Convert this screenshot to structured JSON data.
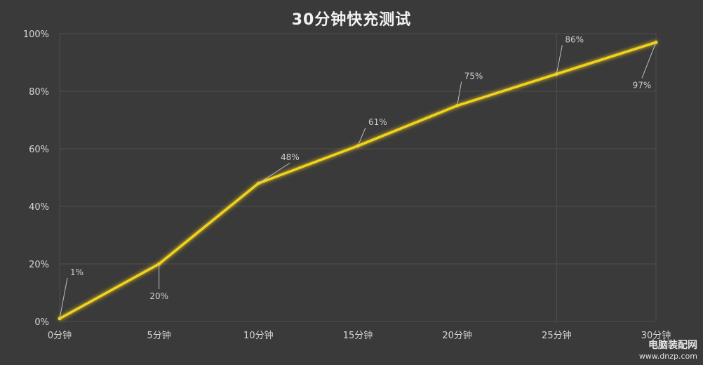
{
  "chart_data": {
    "type": "line",
    "title": "30分钟快充测试",
    "categories": [
      "0分钟",
      "5分钟",
      "10分钟",
      "15分钟",
      "20分钟",
      "25分钟",
      "30分钟"
    ],
    "x": [
      0,
      5,
      10,
      15,
      20,
      25,
      30
    ],
    "yticks": [
      "0%",
      "20%",
      "40%",
      "60%",
      "80%",
      "100%"
    ],
    "ylim": [
      0,
      100
    ],
    "xlim": [
      0,
      30
    ],
    "series": [
      {
        "points": [
          {
            "x": 0,
            "y": 1,
            "label": "1%"
          },
          {
            "x": 5,
            "y": 20,
            "label": "20%"
          },
          {
            "x": 10,
            "y": 48,
            "label": "48%"
          },
          {
            "x": 15,
            "y": 61,
            "label": "61%"
          },
          {
            "x": 20,
            "y": 75,
            "label": "75%"
          },
          {
            "x": 25,
            "y": 86,
            "label": "86%"
          },
          {
            "x": 30,
            "y": 97,
            "label": "97%"
          }
        ]
      }
    ],
    "grid": true,
    "colors": {
      "line": "#f2d21b",
      "background": "#3a3a3a",
      "grid": "#4f4f4f"
    }
  },
  "watermark": {
    "line1": "电脑装配网",
    "line2": "www.dnzp.com"
  }
}
